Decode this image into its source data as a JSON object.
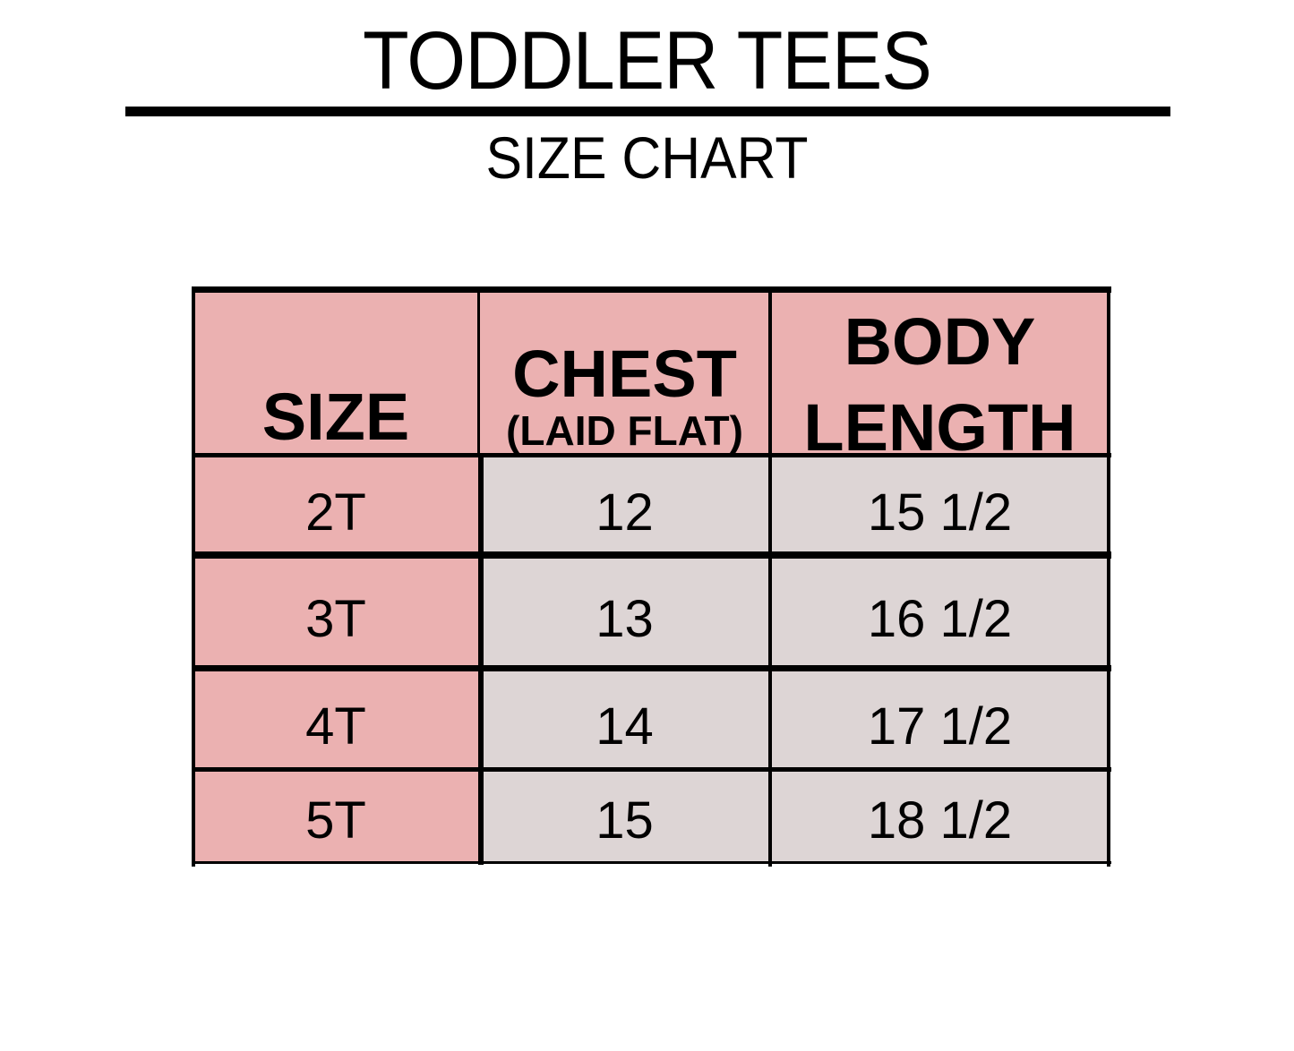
{
  "title": "TODDLER TEES",
  "subtitle": "SIZE CHART",
  "table": {
    "headers": {
      "size": "SIZE",
      "chest": "CHEST",
      "chest_note": "(LAID FLAT)",
      "body_line1": "BODY",
      "body_line2": "LENGTH"
    },
    "rows": [
      {
        "size": "2T",
        "chest": "12",
        "body_length": "15 1/2"
      },
      {
        "size": "3T",
        "chest": "13",
        "body_length": "16 1/2"
      },
      {
        "size": "4T",
        "chest": "14",
        "body_length": "17 1/2"
      },
      {
        "size": "5T",
        "chest": "15",
        "body_length": "18 1/2"
      }
    ]
  },
  "colors": {
    "header_bg": "#ebb1b1",
    "size_col_bg": "#ebb1b1",
    "value_bg": "#ddd5d5",
    "border": "#000000"
  }
}
